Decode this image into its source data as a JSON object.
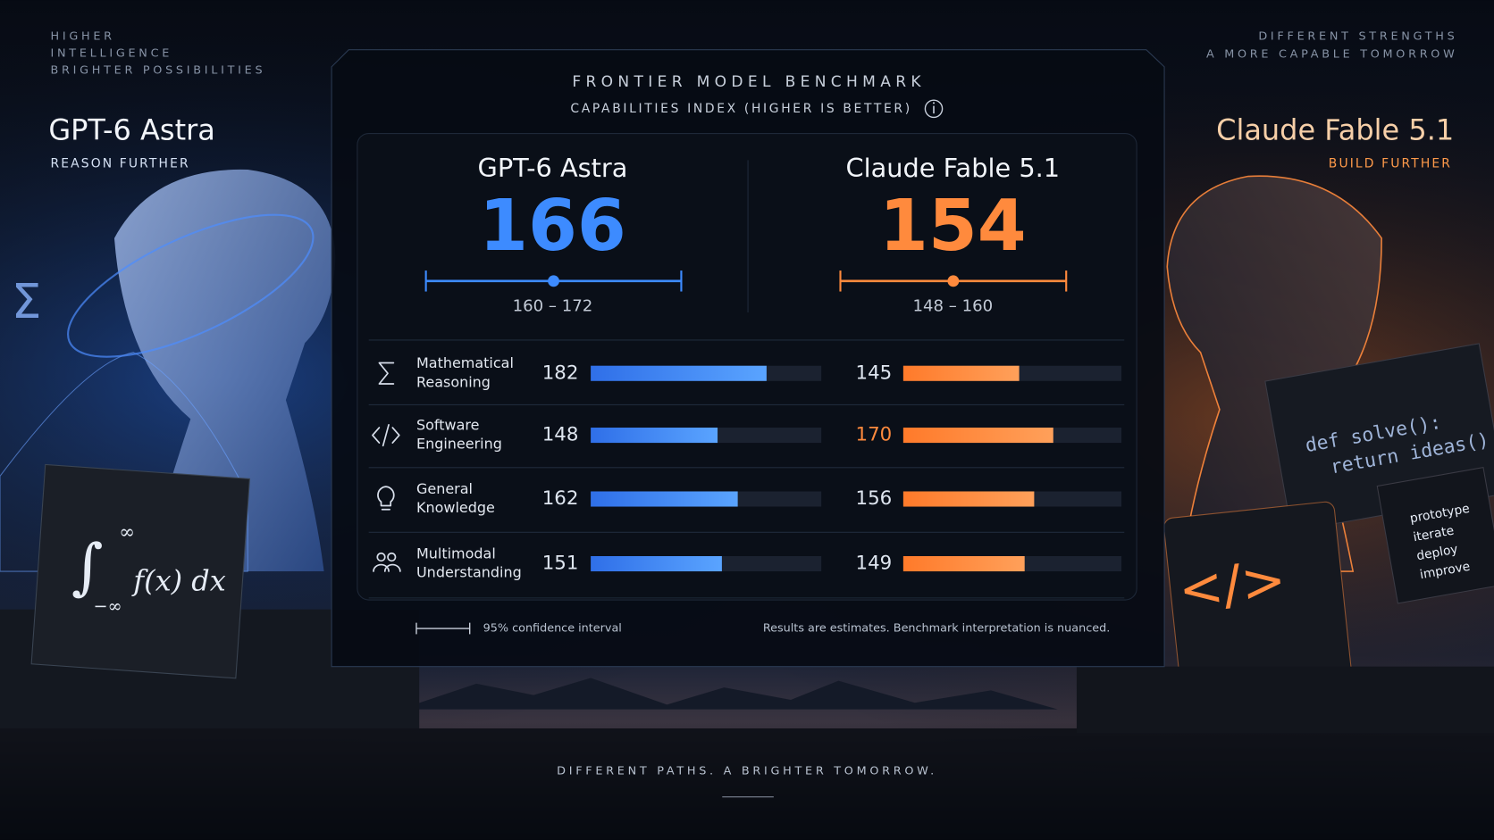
{
  "left": {
    "tagline": [
      "HIGHER",
      "INTELLIGENCE",
      "BRIGHTER POSSIBILITIES"
    ],
    "model": "GPT-6 Astra",
    "motto": "REASON FURTHER"
  },
  "right": {
    "tagline": [
      "DIFFERENT STRENGTHS",
      "A MORE CAPABLE TOMORROW"
    ],
    "model": "Claude Fable 5.1",
    "motto": "BUILD FURTHER"
  },
  "panel": {
    "title": "FRONTIER MODEL BENCHMARK",
    "subtitle": "CAPABILITIES INDEX (HIGHER IS BETTER)",
    "models": [
      {
        "name": "GPT-6 Astra",
        "score": 166,
        "ci": [
          160,
          172
        ],
        "ci_label": "160 – 172",
        "color": "#3d8bff"
      },
      {
        "name": "Claude Fable 5.1",
        "score": 154,
        "ci": [
          148,
          160
        ],
        "ci_label": "148 – 160",
        "color": "#ff8a3d"
      }
    ],
    "categories": [
      [
        "Mathematical",
        "Reasoning"
      ],
      [
        "Software",
        "Engineering"
      ],
      [
        "General",
        "Knowledge"
      ],
      [
        "Multimodal",
        "Understanding"
      ]
    ],
    "bar_xlim": [
      60,
      220
    ],
    "series": [
      {
        "values": [
          182,
          148,
          162,
          151
        ],
        "color": "#3d8bff",
        "highlight": []
      },
      {
        "values": [
          145,
          170,
          156,
          149
        ],
        "color": "#ff8a3d",
        "highlight": [
          1
        ]
      }
    ],
    "legend": "95% confidence interval",
    "note": "Results are estimates. Benchmark interpretation is nuanced."
  },
  "footer": "DIFFERENT PATHS. A BRIGHTER TOMORROW.",
  "decor": {
    "sigma": "Σ",
    "integral": "∫",
    "upper": "∞",
    "lower": "−∞",
    "formula": "f(x) dx",
    "code": [
      "def solve():",
      "return ideas()"
    ],
    "steps": [
      "prototype",
      "iterate",
      "deploy",
      "improve"
    ],
    "tag": "</>"
  }
}
